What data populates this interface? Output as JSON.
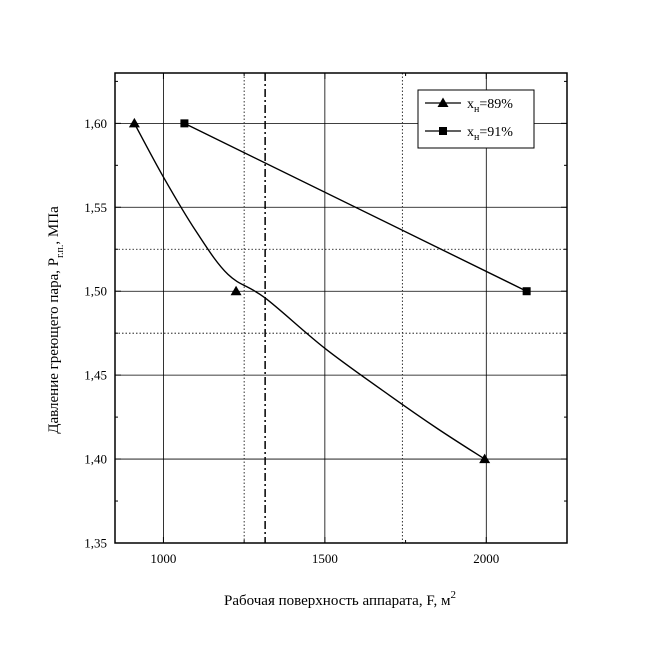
{
  "chart_data": {
    "type": "line",
    "xlabel": "Рабочая поверхность аппарата, F, м",
    "xlabel_sup": "2",
    "ylabel": "Давление греющего пара, P",
    "ylabel_sub": "г.п.",
    "ylabel_unit": ", МПа",
    "xlim": [
      850,
      2250
    ],
    "ylim": [
      1.35,
      1.63
    ],
    "x_ticks": [
      1000,
      1500,
      2000
    ],
    "x_tick_labels": [
      "1000",
      "1500",
      "2000"
    ],
    "y_ticks": [
      1.35,
      1.4,
      1.45,
      1.5,
      1.55,
      1.6
    ],
    "y_tick_labels": [
      "1,35",
      "1,40",
      "1,45",
      "1,50",
      "1,55",
      "1,60"
    ],
    "grid": "major solid",
    "reference_lines": {
      "x_dotted": [
        1250,
        1740
      ],
      "y_dotted": [
        1.525,
        1.475
      ],
      "x_dashdot": [
        1315
      ]
    },
    "legend_position": "top-right",
    "series": [
      {
        "name": "x",
        "name_sub": "н",
        "name_suffix": "=89%",
        "marker": "triangle",
        "points": [
          {
            "x": 910,
            "y": 1.6
          },
          {
            "x": 1225,
            "y": 1.5
          },
          {
            "x": 1995,
            "y": 1.4
          }
        ],
        "curve": [
          {
            "x": 910,
            "y": 1.6
          },
          {
            "x": 1000,
            "y": 1.568
          },
          {
            "x": 1100,
            "y": 1.536
          },
          {
            "x": 1200,
            "y": 1.51
          },
          {
            "x": 1315,
            "y": 1.496
          },
          {
            "x": 1500,
            "y": 1.466
          },
          {
            "x": 1700,
            "y": 1.438
          },
          {
            "x": 1850,
            "y": 1.418
          },
          {
            "x": 1995,
            "y": 1.4
          }
        ]
      },
      {
        "name": "x",
        "name_sub": "н",
        "name_suffix": "=91%",
        "marker": "square",
        "points": [
          {
            "x": 1065,
            "y": 1.6
          },
          {
            "x": 2125,
            "y": 1.5
          }
        ],
        "curve": [
          {
            "x": 1065,
            "y": 1.6
          },
          {
            "x": 2125,
            "y": 1.5
          }
        ]
      }
    ]
  }
}
